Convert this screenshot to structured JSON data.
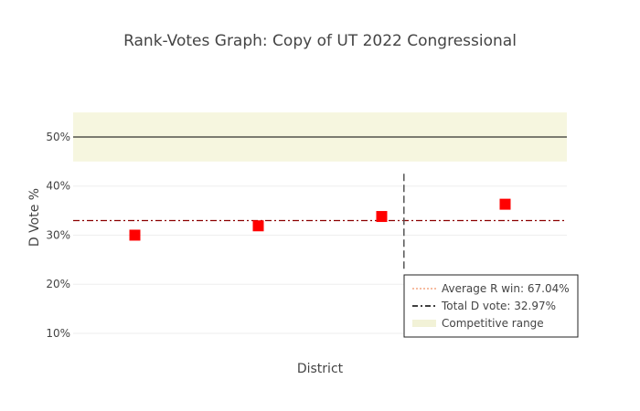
{
  "chart_data": {
    "type": "scatter",
    "title": "Rank-Votes Graph: Copy of UT 2022 Congressional",
    "xlabel": "District",
    "ylabel": "D Vote %",
    "ylim": [
      0.072,
      0.593
    ],
    "yticks": [
      0.1,
      0.2,
      0.3,
      0.4,
      0.5
    ],
    "ytick_labels": [
      "10%",
      "20%",
      "30%",
      "40%",
      "50%"
    ],
    "grid": true,
    "x": [
      1,
      2,
      3,
      4
    ],
    "xlim": [
      0.5,
      4.5
    ],
    "series": [
      {
        "type": "scatter",
        "marker": "square",
        "color": "#ff0000",
        "values": [
          0.3,
          0.319,
          0.338,
          0.363
        ]
      }
    ],
    "competitive_range": [
      0.45,
      0.55
    ],
    "fifty_percent_line": 0.5,
    "average_r_win": 0.6704,
    "total_d_vote": 0.3297,
    "seat_split_x": 3.18,
    "seat_split_y_range": [
      0.228,
      0.425
    ],
    "legend": {
      "position": "bottom-right",
      "entries": [
        {
          "label": "Average R win: 67.04%",
          "style": "dotted",
          "color": "#f4a582"
        },
        {
          "label": "Total D vote: 32.97%",
          "style": "dashdot",
          "color": "#000000"
        },
        {
          "label": "Competitive range",
          "style": "band",
          "color": "#f2f2d7"
        }
      ]
    },
    "colors": {
      "band": "#f5f5dc",
      "total_d_line": "#8b0000",
      "split_line": "#555555",
      "grid": "#eeeeee"
    }
  }
}
